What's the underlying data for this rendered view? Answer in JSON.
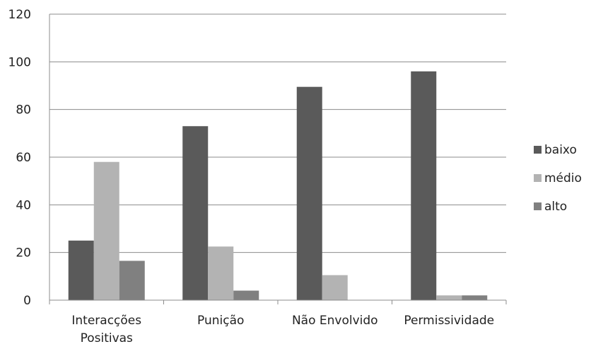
{
  "chart_data": {
    "type": "bar",
    "categories": [
      [
        "Interacções",
        "Positivas"
      ],
      [
        "Punição"
      ],
      [
        "Não Envolvido"
      ],
      [
        "Permissividade"
      ]
    ],
    "series": [
      {
        "name": "baixo",
        "values": [
          25,
          73,
          89.5,
          96
        ],
        "color": "#5a5a5a"
      },
      {
        "name": "médio",
        "values": [
          58,
          22.5,
          10.5,
          2
        ],
        "color": "#b3b3b3"
      },
      {
        "name": "alto",
        "values": [
          16.5,
          4,
          0,
          2
        ],
        "color": "#808080"
      }
    ],
    "ylim": [
      0,
      120
    ],
    "yticks": [
      0,
      20,
      40,
      60,
      80,
      100,
      120
    ],
    "grid": true,
    "legend_position": "right",
    "title": "",
    "xlabel": "",
    "ylabel": ""
  }
}
